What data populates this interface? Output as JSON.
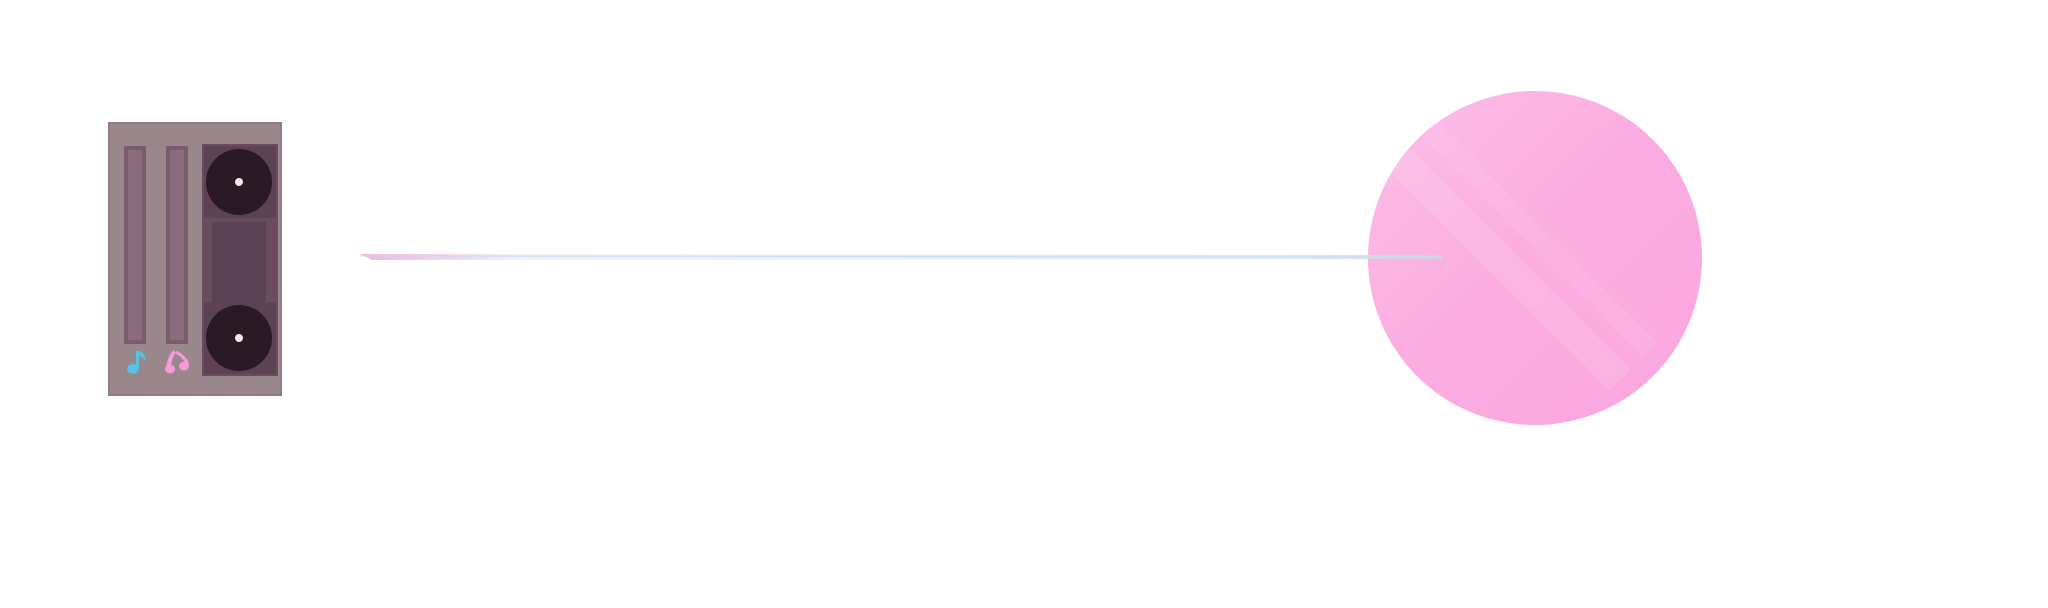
{
  "background": "#ffffff",
  "colors": {
    "speaker_frame": "#927c81",
    "speaker_panel": "#5d4154",
    "speaker_cone": "#2b1a26",
    "speaker_dot": "#f5e6ea",
    "target_pink": "#fba6df",
    "beam_blue": "#dbe7f3",
    "beam_pink": "#f2a7d5",
    "note_blue": "#5bc0e6",
    "note_pink": "#f59ad6"
  },
  "icons": {
    "left_note": "music-note-icon",
    "right_note": "beamed-notes-icon"
  },
  "game": {
    "objects": [
      "speaker",
      "sound-beam",
      "pink-orb"
    ]
  }
}
